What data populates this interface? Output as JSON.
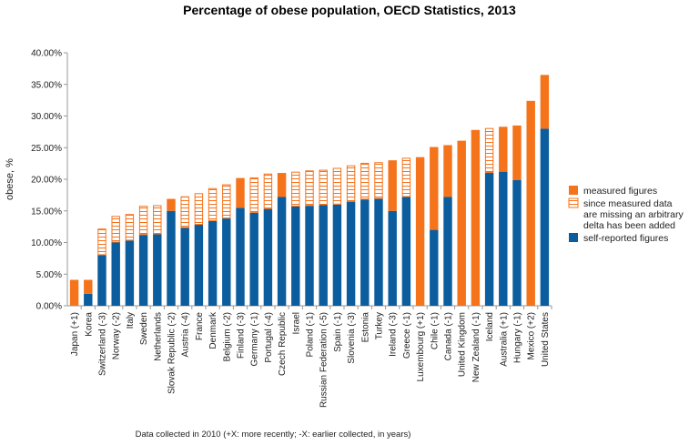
{
  "chart_data": {
    "type": "bar",
    "stacked": true,
    "title": "Percentage of obese population, OECD Statistics, 2013",
    "ylabel": "obese, %",
    "xlabel": "Data collected in 2010 (+X: more recently; -X: earlier collected, in years)",
    "ylim": [
      0,
      40
    ],
    "yticks": [
      "0.00%",
      "5.00%",
      "10.00%",
      "15.00%",
      "20.00%",
      "25.00%",
      "30.00%",
      "35.00%",
      "40.00%"
    ],
    "grid": false,
    "legend_position": "right",
    "categories": [
      "Japan (+1)",
      "Korea",
      "Switzerland (-3)",
      "Norway (-2)",
      "Italy",
      "Sweden",
      "Netherlands",
      "Slovak Republic (-2)",
      "Austria (-4)",
      "France",
      "Denmark",
      "Belgium (-2)",
      "Finland (-3)",
      "Germany (-1)",
      "Portugal (-4)",
      "Czech Republic",
      "Israel",
      "Poland (-1)",
      "Russian Federation (-5)",
      "Spain (-1)",
      "Slovenia (-3)",
      "Estonia",
      "Turkey",
      "Ireland (-3)",
      "Greece (-1)",
      "Luxembourg (+1)",
      "Chile (-1)",
      "Canada (-1)",
      "United Kingdom",
      "New Zealand (-1)",
      "Iceland",
      "Australia (+1)",
      "Hungary (-1)",
      "Mexico (+2)",
      "United States"
    ],
    "series": [
      {
        "name": "self-reported figures",
        "color": "#0b5d9e",
        "values": [
          0,
          1.9,
          8.0,
          10.0,
          10.3,
          11.2,
          11.3,
          15.0,
          12.3,
          12.8,
          13.4,
          13.8,
          15.5,
          14.7,
          15.3,
          17.2,
          15.7,
          15.8,
          15.9,
          16.0,
          16.4,
          16.8,
          16.9,
          15.0,
          17.2,
          0,
          12.0,
          17.2,
          0,
          0,
          21.0,
          21.2,
          19.9,
          0,
          28.0
        ]
      },
      {
        "name": "since measured data are missing an arbitrary delta has been added",
        "color": "#f5731b",
        "pattern": "hatched",
        "values": [
          0,
          0,
          4.2,
          4.2,
          4.2,
          4.6,
          4.6,
          0,
          5.0,
          5.0,
          5.2,
          5.4,
          0,
          5.6,
          5.6,
          0,
          5.5,
          5.6,
          5.6,
          5.8,
          5.8,
          5.8,
          5.8,
          0,
          6.2,
          0,
          0,
          0,
          0,
          0,
          7.1,
          0,
          0,
          0,
          0
        ]
      },
      {
        "name": "measured figures",
        "color": "#f5731b",
        "values": [
          4.1,
          2.2,
          0,
          0,
          0,
          0,
          0,
          1.9,
          0,
          0,
          0,
          0,
          4.7,
          0,
          0,
          3.8,
          0,
          0,
          0,
          0,
          0,
          0,
          0,
          8.0,
          0,
          23.5,
          13.1,
          8.2,
          26.1,
          27.8,
          0,
          7.1,
          8.6,
          32.4,
          8.5
        ]
      }
    ]
  }
}
